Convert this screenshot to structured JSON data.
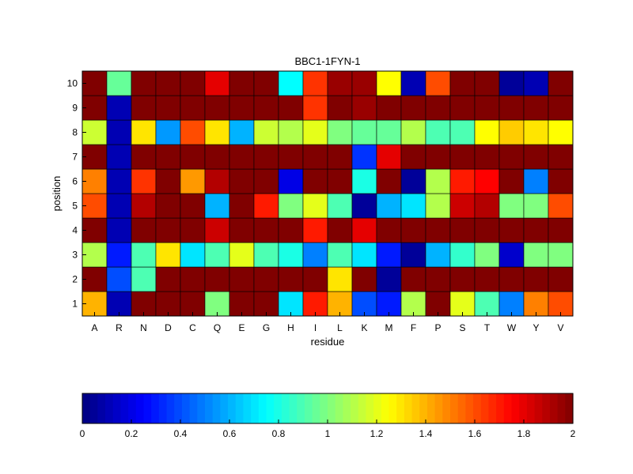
{
  "chart_data": {
    "type": "heatmap",
    "title": "BBC1-1FYN-1",
    "xlabel": "residue",
    "ylabel": "position",
    "x_categories": [
      "A",
      "R",
      "N",
      "D",
      "C",
      "Q",
      "E",
      "G",
      "H",
      "I",
      "L",
      "K",
      "M",
      "F",
      "P",
      "S",
      "T",
      "W",
      "Y",
      "V"
    ],
    "y_categories": [
      "1",
      "2",
      "3",
      "4",
      "5",
      "6",
      "7",
      "8",
      "9",
      "10"
    ],
    "values": [
      [
        1.4,
        0.1,
        2.0,
        2.0,
        2.0,
        1.0,
        2.0,
        2.0,
        0.7,
        1.7,
        1.4,
        0.4,
        0.3,
        1.1,
        2.0,
        1.2,
        0.9,
        0.5,
        1.5,
        1.6
      ],
      [
        2.0,
        0.4,
        0.9,
        2.0,
        2.0,
        2.0,
        2.0,
        2.0,
        2.0,
        2.0,
        1.3,
        2.0,
        0.05,
        2.0,
        2.0,
        2.0,
        2.0,
        2.0,
        2.0,
        2.0
      ],
      [
        1.1,
        0.3,
        0.9,
        1.3,
        0.7,
        0.9,
        1.2,
        0.9,
        0.8,
        0.5,
        0.9,
        0.7,
        0.3,
        0.05,
        0.6,
        0.85,
        1.0,
        0.15,
        1.0,
        1.0
      ],
      [
        2.0,
        0.1,
        2.0,
        2.0,
        2.0,
        1.85,
        2.0,
        2.0,
        2.0,
        1.7,
        2.0,
        1.8,
        2.0,
        2.0,
        2.0,
        2.0,
        2.0,
        2.0,
        2.0,
        2.0
      ],
      [
        1.6,
        0.1,
        1.9,
        2.0,
        2.0,
        0.6,
        2.0,
        1.7,
        1.0,
        1.2,
        0.9,
        0.05,
        0.6,
        0.7,
        1.1,
        1.85,
        1.9,
        1.0,
        1.0,
        1.6
      ],
      [
        1.5,
        0.1,
        1.65,
        2.0,
        1.45,
        1.9,
        2.0,
        2.0,
        0.2,
        2.0,
        2.0,
        0.8,
        2.0,
        0.05,
        1.1,
        1.7,
        1.75,
        2.0,
        0.5,
        2.0
      ],
      [
        2.0,
        0.1,
        2.0,
        2.0,
        2.0,
        2.0,
        2.0,
        2.0,
        2.0,
        2.0,
        2.0,
        0.35,
        1.8,
        2.0,
        2.0,
        2.0,
        2.0,
        2.0,
        2.0,
        2.0
      ],
      [
        1.15,
        0.1,
        1.3,
        0.55,
        1.6,
        1.3,
        0.6,
        1.15,
        1.1,
        1.2,
        1.0,
        0.95,
        0.95,
        1.1,
        0.9,
        0.9,
        1.25,
        1.35,
        1.3,
        1.25
      ],
      [
        2.0,
        0.1,
        2.0,
        2.0,
        2.0,
        2.0,
        2.0,
        2.0,
        2.0,
        1.65,
        2.0,
        1.95,
        2.0,
        2.0,
        2.0,
        2.0,
        2.0,
        2.0,
        2.0,
        2.0
      ],
      [
        2.0,
        0.95,
        2.0,
        2.0,
        2.0,
        1.8,
        2.0,
        2.0,
        0.75,
        1.65,
        1.95,
        1.95,
        1.25,
        0.1,
        1.6,
        2.0,
        2.0,
        0.05,
        0.1,
        2.0
      ]
    ],
    "colorbar": {
      "min": 0,
      "max": 2,
      "ticks": [
        "0",
        "0.2",
        "0.4",
        "0.6",
        "0.8",
        "1",
        "1.2",
        "1.4",
        "1.6",
        "1.8",
        "2"
      ],
      "colormap": "jet"
    },
    "grid": false,
    "legend": "colorbar-bottom"
  }
}
